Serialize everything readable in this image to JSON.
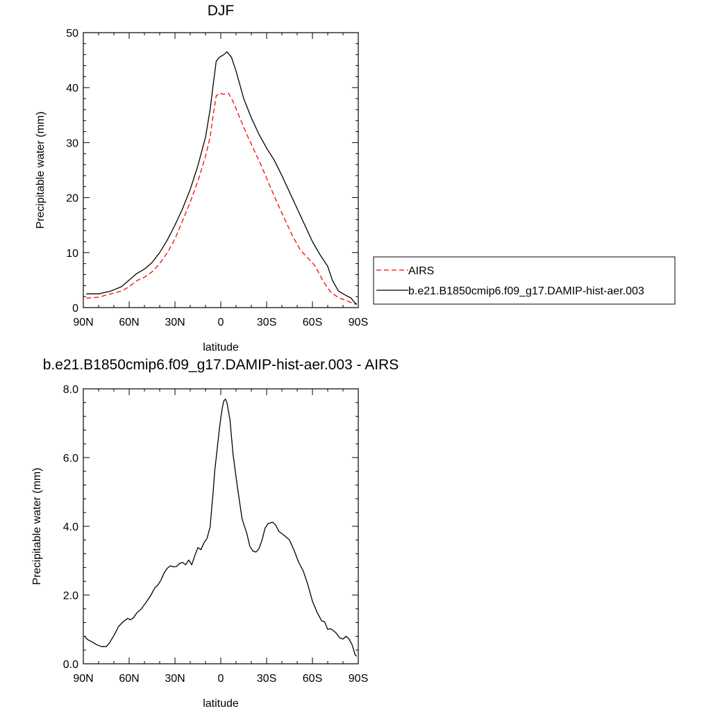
{
  "chart_data": [
    {
      "type": "line",
      "title": "DJF",
      "xlabel": "latitude",
      "ylabel": "Precipitable water (mm)",
      "xlim": [
        90,
        -90
      ],
      "ylim": [
        0,
        50
      ],
      "yticks": [
        0,
        10,
        20,
        30,
        40,
        50
      ],
      "xticks": [
        90,
        60,
        30,
        0,
        -30,
        -60,
        -90
      ],
      "xtick_labels": [
        "90N",
        "60N",
        "30N",
        "0",
        "30S",
        "60S",
        "90S"
      ],
      "grid": false,
      "legend_position": "right",
      "series": [
        {
          "name": "AIRS",
          "color": "#ff0000",
          "dash": "dashed",
          "points": [
            [
              88,
              1.7
            ],
            [
              80,
              1.9
            ],
            [
              72,
              2.5
            ],
            [
              65,
              3.0
            ],
            [
              60,
              3.8
            ],
            [
              55,
              4.9
            ],
            [
              50,
              5.5
            ],
            [
              45,
              6.5
            ],
            [
              40,
              8.0
            ],
            [
              35,
              10.0
            ],
            [
              30,
              12.5
            ],
            [
              25,
              15.8
            ],
            [
              20,
              19.2
            ],
            [
              15,
              23.0
            ],
            [
              10,
              27.5
            ],
            [
              7,
              31.0
            ],
            [
              5,
              35.0
            ],
            [
              3,
              38.5
            ],
            [
              1,
              39.0
            ],
            [
              -2,
              38.8
            ],
            [
              -5,
              39.0
            ],
            [
              -8,
              37.5
            ],
            [
              -12,
              34.8
            ],
            [
              -17,
              31.5
            ],
            [
              -22,
              28.5
            ],
            [
              -27,
              25.5
            ],
            [
              -32,
              22.2
            ],
            [
              -37,
              19.0
            ],
            [
              -42,
              16.0
            ],
            [
              -47,
              13.0
            ],
            [
              -52,
              10.5
            ],
            [
              -57,
              9.0
            ],
            [
              -62,
              7.5
            ],
            [
              -67,
              4.8
            ],
            [
              -72,
              2.8
            ],
            [
              -77,
              1.8
            ],
            [
              -82,
              1.3
            ],
            [
              -87,
              0.7
            ],
            [
              -89,
              0.6
            ]
          ]
        },
        {
          "name": "b.e21.B1850cmip6.f09_g17.DAMIP-hist-aer.003",
          "color": "#000000",
          "dash": "solid",
          "points": [
            [
              88,
              2.5
            ],
            [
              80,
              2.5
            ],
            [
              72,
              3.0
            ],
            [
              65,
              3.8
            ],
            [
              60,
              5.0
            ],
            [
              55,
              6.2
            ],
            [
              50,
              7.0
            ],
            [
              45,
              8.2
            ],
            [
              40,
              10.0
            ],
            [
              35,
              12.3
            ],
            [
              30,
              15.0
            ],
            [
              25,
              18.0
            ],
            [
              20,
              21.5
            ],
            [
              15,
              25.8
            ],
            [
              10,
              31.0
            ],
            [
              7,
              36.0
            ],
            [
              5,
              40.5
            ],
            [
              3,
              44.8
            ],
            [
              1,
              45.5
            ],
            [
              -2,
              46.0
            ],
            [
              -4,
              46.5
            ],
            [
              -7,
              45.5
            ],
            [
              -10,
              43.0
            ],
            [
              -15,
              38.0
            ],
            [
              -20,
              34.5
            ],
            [
              -25,
              31.5
            ],
            [
              -30,
              29.0
            ],
            [
              -35,
              26.8
            ],
            [
              -40,
              24.0
            ],
            [
              -45,
              21.0
            ],
            [
              -50,
              18.0
            ],
            [
              -55,
              15.0
            ],
            [
              -60,
              12.0
            ],
            [
              -65,
              9.6
            ],
            [
              -70,
              7.5
            ],
            [
              -73,
              5.0
            ],
            [
              -77,
              3.0
            ],
            [
              -82,
              2.2
            ],
            [
              -85,
              1.8
            ],
            [
              -88,
              0.8
            ],
            [
              -89,
              0.6
            ]
          ]
        }
      ]
    },
    {
      "type": "line",
      "title": "b.e21.B1850cmip6.f09_g17.DAMIP-hist-aer.003 - AIRS",
      "xlabel": "latitude",
      "ylabel": "Precipitable water (mm)",
      "xlim": [
        90,
        -90
      ],
      "ylim": [
        0,
        8
      ],
      "yticks": [
        0,
        2,
        4,
        6,
        8
      ],
      "ytick_labels": [
        "0.0",
        "2.0",
        "4.0",
        "6.0",
        "8.0"
      ],
      "xticks": [
        90,
        60,
        30,
        0,
        -30,
        -60,
        -90
      ],
      "xtick_labels": [
        "90N",
        "60N",
        "30N",
        "0",
        "30S",
        "60S",
        "90S"
      ],
      "grid": false,
      "series": [
        {
          "color": "#000000",
          "dash": "solid",
          "points": [
            [
              89,
              0.78
            ],
            [
              87,
              0.7
            ],
            [
              84,
              0.63
            ],
            [
              81,
              0.55
            ],
            [
              78,
              0.5
            ],
            [
              75,
              0.5
            ],
            [
              73,
              0.6
            ],
            [
              70,
              0.82
            ],
            [
              67,
              1.08
            ],
            [
              64,
              1.22
            ],
            [
              61,
              1.32
            ],
            [
              59,
              1.28
            ],
            [
              57,
              1.35
            ],
            [
              55,
              1.48
            ],
            [
              52,
              1.6
            ],
            [
              49,
              1.78
            ],
            [
              46,
              1.98
            ],
            [
              43,
              2.22
            ],
            [
              41,
              2.3
            ],
            [
              39,
              2.45
            ],
            [
              37,
              2.65
            ],
            [
              35,
              2.78
            ],
            [
              33,
              2.85
            ],
            [
              31,
              2.82
            ],
            [
              29,
              2.83
            ],
            [
              27,
              2.92
            ],
            [
              25,
              2.95
            ],
            [
              23,
              2.88
            ],
            [
              21,
              3.02
            ],
            [
              19,
              2.88
            ],
            [
              17,
              3.15
            ],
            [
              15,
              3.38
            ],
            [
              13,
              3.32
            ],
            [
              11,
              3.52
            ],
            [
              9,
              3.65
            ],
            [
              7,
              3.98
            ],
            [
              6,
              4.5
            ],
            [
              5,
              5.0
            ],
            [
              4,
              5.6
            ],
            [
              3,
              6.0
            ],
            [
              2,
              6.4
            ],
            [
              1,
              6.8
            ],
            [
              0,
              7.15
            ],
            [
              -1,
              7.45
            ],
            [
              -2,
              7.65
            ],
            [
              -3,
              7.7
            ],
            [
              -4,
              7.6
            ],
            [
              -6,
              7.1
            ],
            [
              -8,
              6.1
            ],
            [
              -11,
              5.1
            ],
            [
              -14,
              4.2
            ],
            [
              -17,
              3.8
            ],
            [
              -19,
              3.42
            ],
            [
              -21,
              3.28
            ],
            [
              -23,
              3.25
            ],
            [
              -25,
              3.35
            ],
            [
              -27,
              3.6
            ],
            [
              -29,
              3.95
            ],
            [
              -31,
              4.08
            ],
            [
              -34,
              4.12
            ],
            [
              -36,
              4.03
            ],
            [
              -38,
              3.85
            ],
            [
              -42,
              3.72
            ],
            [
              -45,
              3.6
            ],
            [
              -48,
              3.3
            ],
            [
              -51,
              2.95
            ],
            [
              -54,
              2.7
            ],
            [
              -57,
              2.3
            ],
            [
              -60,
              1.82
            ],
            [
              -63,
              1.5
            ],
            [
              -66,
              1.25
            ],
            [
              -68,
              1.22
            ],
            [
              -70,
              1.0
            ],
            [
              -72,
              1.02
            ],
            [
              -75,
              0.92
            ],
            [
              -78,
              0.75
            ],
            [
              -80,
              0.72
            ],
            [
              -82,
              0.8
            ],
            [
              -84,
              0.72
            ],
            [
              -86,
              0.55
            ],
            [
              -88,
              0.25
            ],
            [
              -89,
              0.22
            ]
          ]
        }
      ]
    }
  ]
}
